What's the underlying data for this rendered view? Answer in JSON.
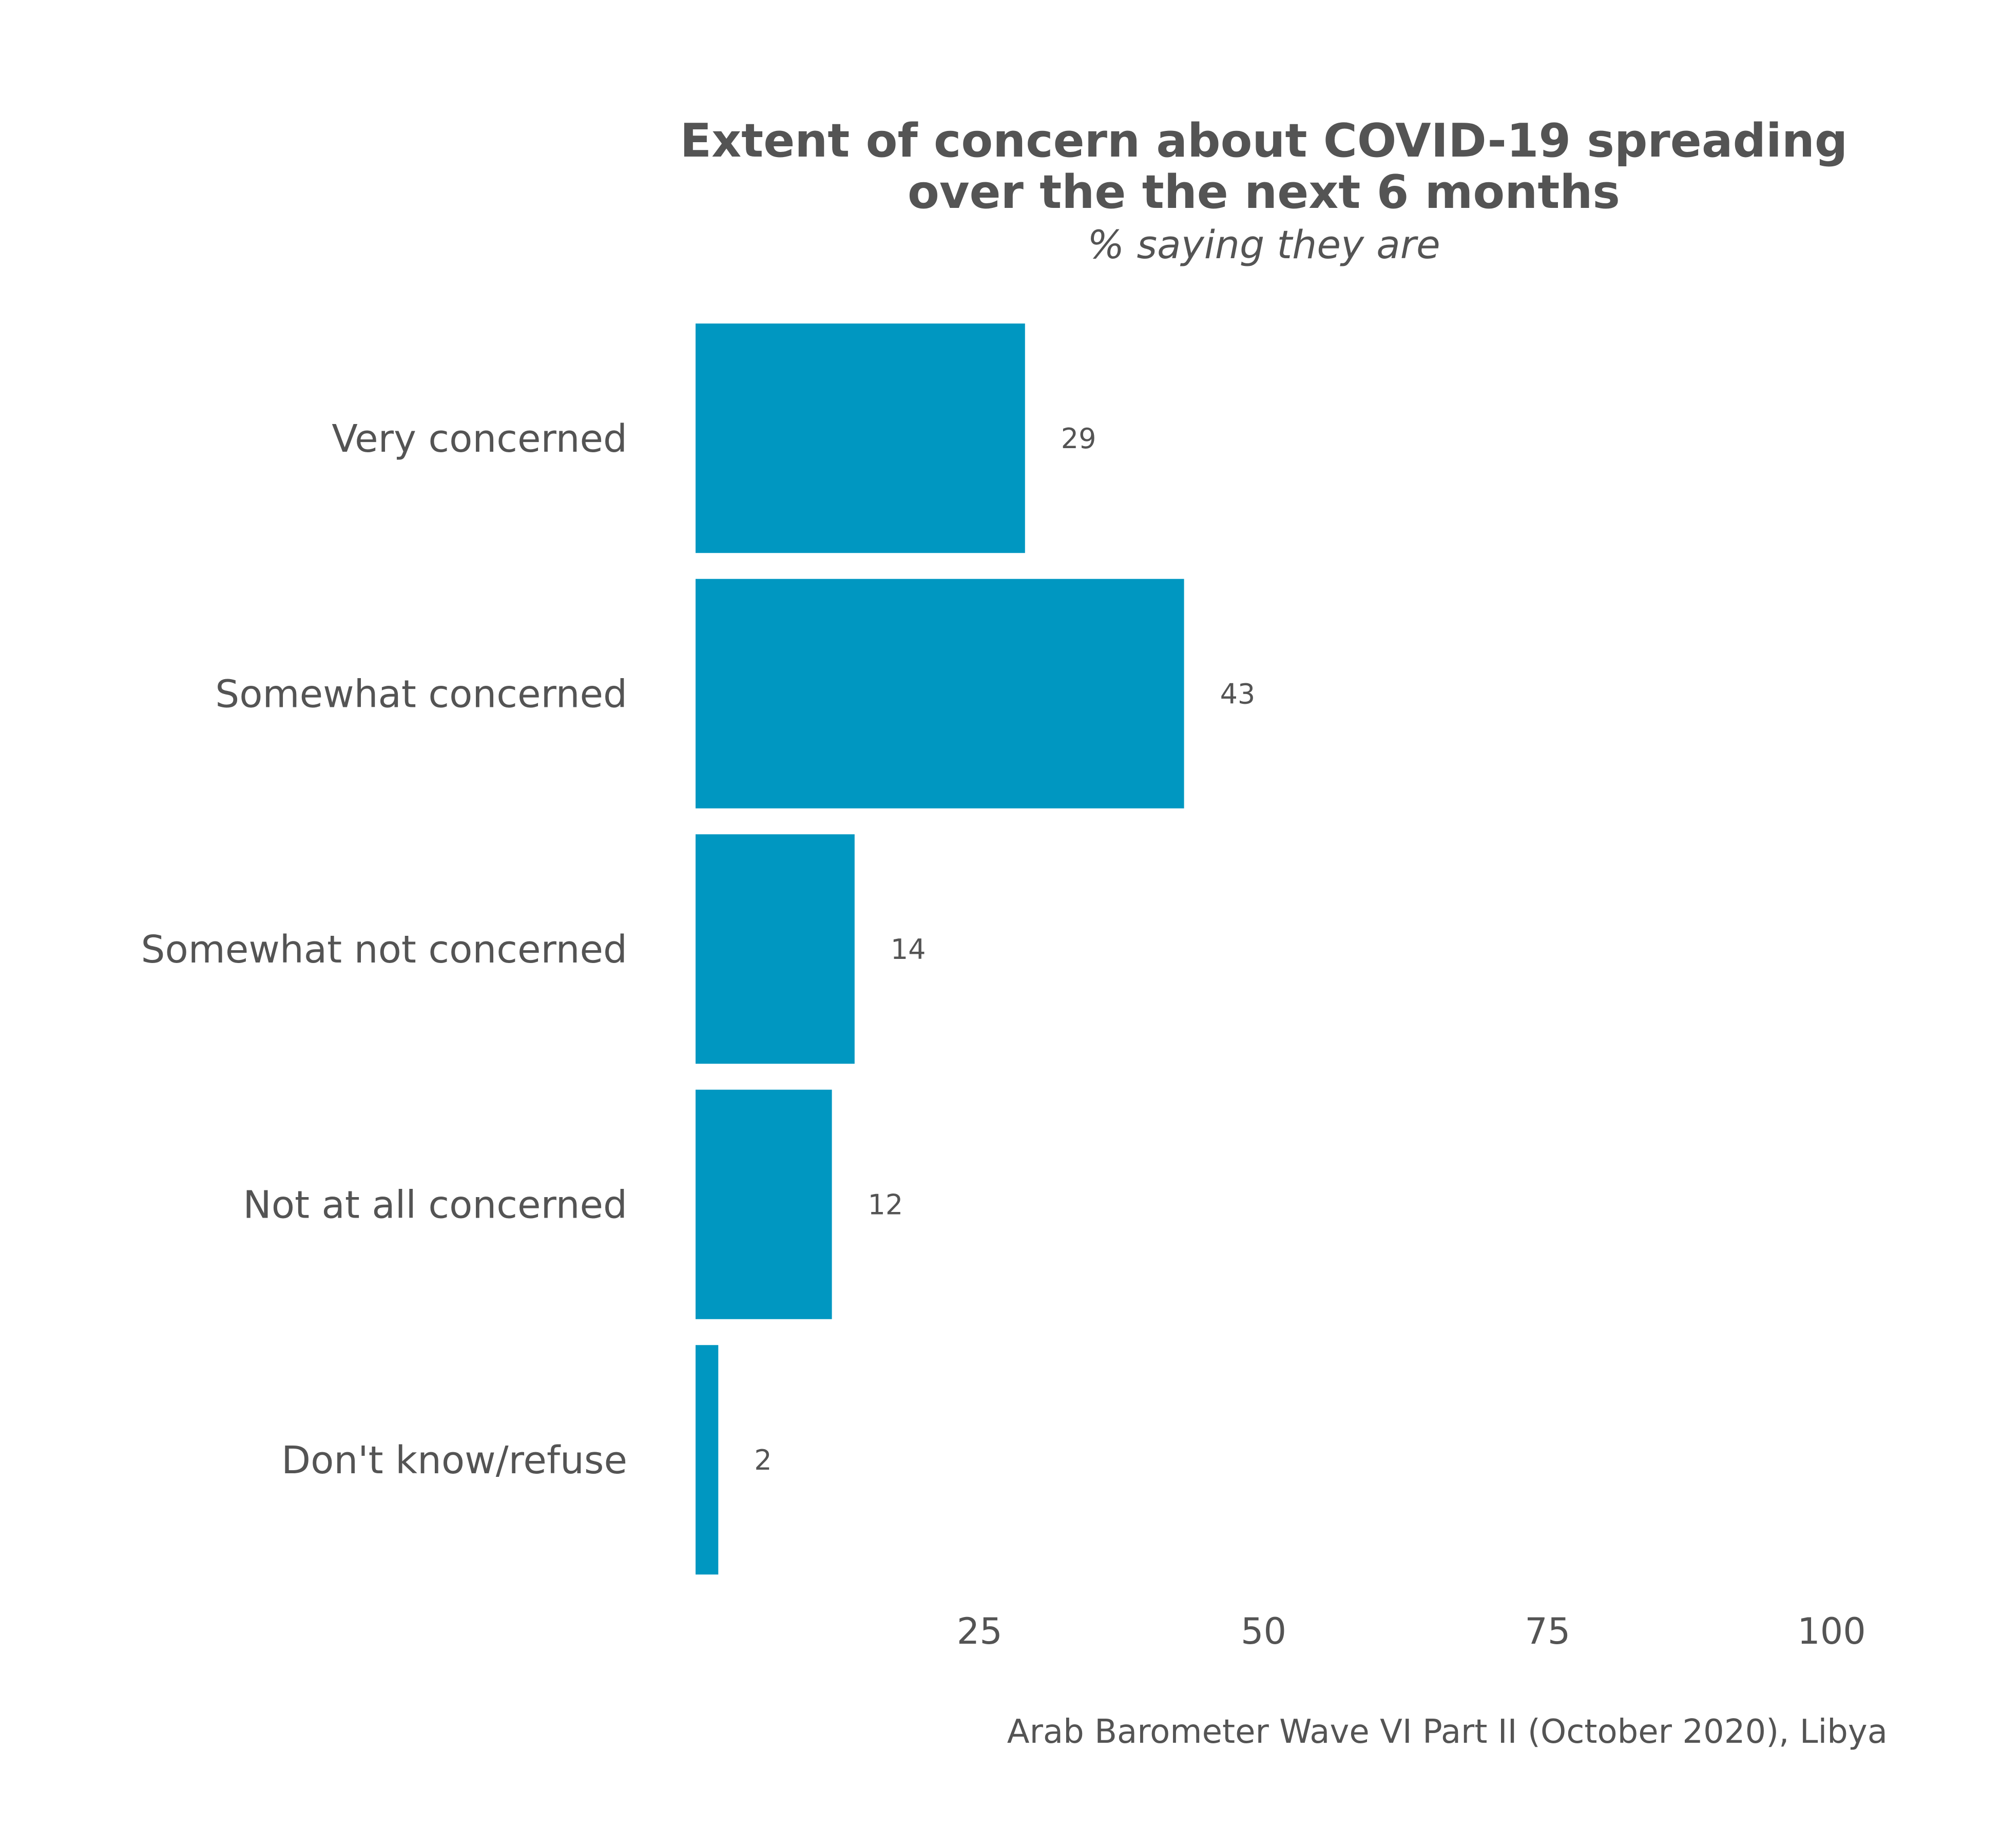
{
  "chart_data": {
    "type": "bar",
    "orientation": "horizontal",
    "title": "Extent of concern about COVID-19 spreading over the the next 6 months",
    "title_lines": [
      "Extent of concern about COVID-19 spreading",
      "over the the next 6 months"
    ],
    "subtitle": "% saying they are",
    "categories": [
      "Very concerned",
      "Somewhat concerned",
      "Somewhat not concerned",
      "Not at all concerned",
      "Don't know/refuse"
    ],
    "values": [
      29,
      43,
      14,
      12,
      2
    ],
    "value_labels": [
      "29",
      "43",
      "14",
      "12",
      "2"
    ],
    "xlim": [
      0,
      100
    ],
    "x_ticks": [
      25,
      50,
      75,
      100
    ],
    "x_tick_labels": [
      "25",
      "50",
      "75",
      "100"
    ],
    "xlabel": "",
    "ylabel": "",
    "grid": false,
    "legend": "none",
    "bar_color": "#0097C1",
    "text_color": "#545454",
    "caption": "Arab Barometer Wave VI Part II (October 2020), Libya"
  }
}
